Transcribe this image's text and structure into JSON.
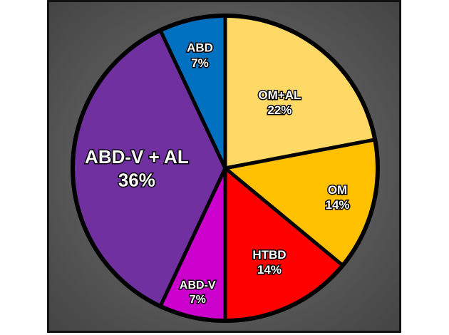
{
  "chart_data": {
    "type": "pie",
    "title": "",
    "start_angle_deg": 0,
    "direction": "clockwise",
    "slices": [
      {
        "name": "OM+AL",
        "value": 22,
        "label": "22%",
        "color": "#FFD966"
      },
      {
        "name": "OM",
        "value": 14,
        "label": "14%",
        "color": "#FFC000"
      },
      {
        "name": "HTBD",
        "value": 14,
        "label": "14%",
        "color": "#FF0000"
      },
      {
        "name": "ABD-V",
        "value": 7,
        "label": "7%",
        "color": "#CC00CC"
      },
      {
        "name": "ABD-V + AL",
        "value": 36,
        "label": "36%",
        "color": "#7030A0"
      },
      {
        "name": "ABD",
        "value": 7,
        "label": "7%",
        "color": "#0070C0"
      }
    ],
    "background": "#5f5f5f",
    "border_color": "#000000"
  }
}
